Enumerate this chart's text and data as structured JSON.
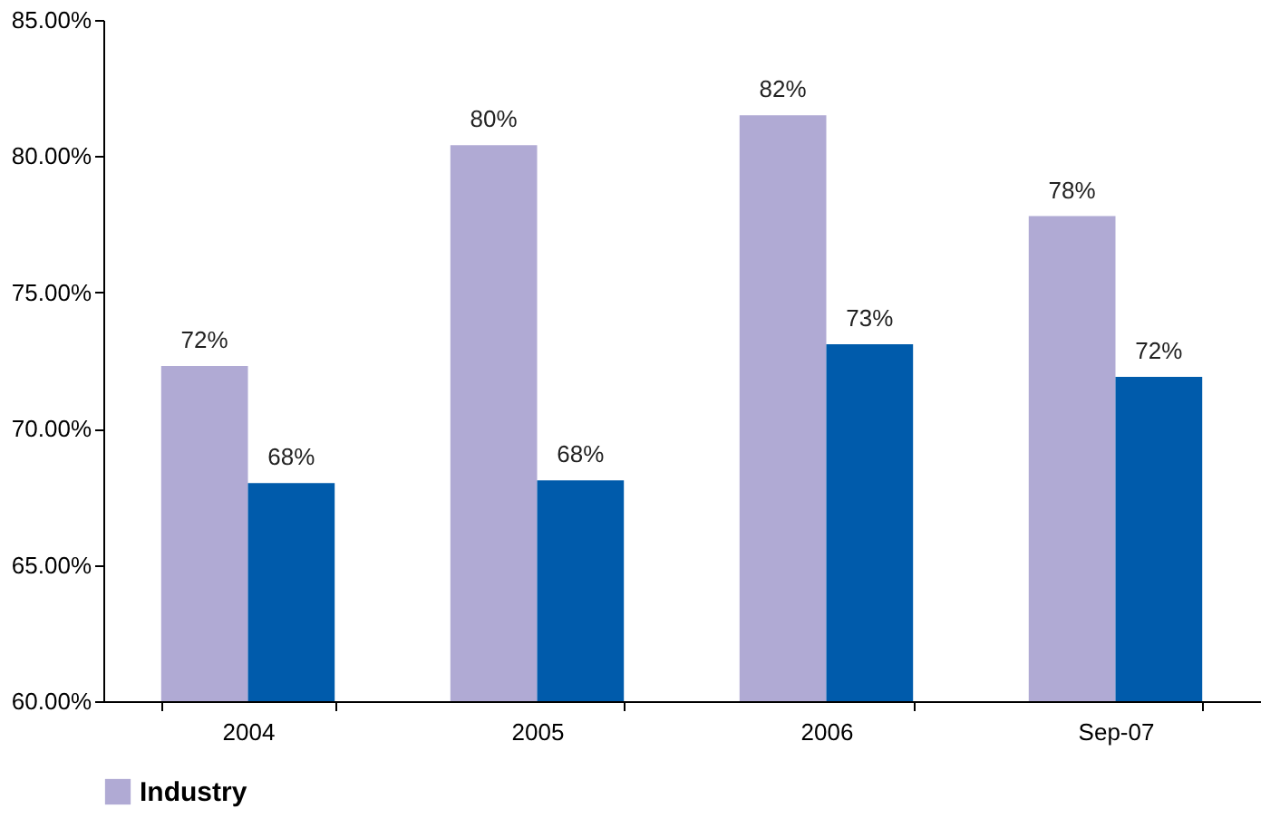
{
  "chart_data": {
    "type": "bar",
    "categories": [
      "2004",
      "2005",
      "2006",
      "Sep-07"
    ],
    "series": [
      {
        "name": "Industry",
        "color": "#b0aad4",
        "values": [
          72.3,
          80.4,
          81.5,
          77.8
        ],
        "value_labels": [
          "72%",
          "80%",
          "82%",
          "78%"
        ]
      },
      {
        "color": "#005bab",
        "values": [
          68.0,
          68.1,
          73.1,
          71.9
        ],
        "value_labels": [
          "68%",
          "68%",
          "73%",
          "72%"
        ]
      }
    ],
    "ylim": [
      60,
      85
    ],
    "yticks": [
      {
        "value": 60,
        "label": "60.00%"
      },
      {
        "value": 65,
        "label": "65.00%"
      },
      {
        "value": 70,
        "label": "70.00%"
      },
      {
        "value": 75,
        "label": "75.00%"
      },
      {
        "value": 80,
        "label": "80.00%"
      },
      {
        "value": 85,
        "label": "85.00%"
      }
    ],
    "grid": false,
    "legend": "bottom"
  }
}
